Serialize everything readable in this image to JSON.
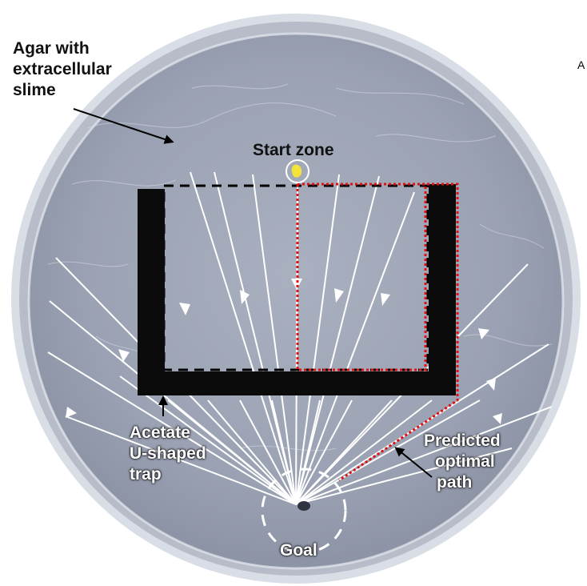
{
  "labels": {
    "agar": [
      "Agar with",
      "extracellular",
      "slime"
    ],
    "start_zone": "Start zone",
    "trap": [
      "Acetate",
      "U-shaped",
      "trap"
    ],
    "path": [
      "Predicted",
      "optimal",
      "path"
    ],
    "goal": "Goal"
  },
  "colors": {
    "dish_fill": "#9fa6b6",
    "dish_rim": "#dfe3ea",
    "trap": "#0b0b0b",
    "arrows": "#ffffff",
    "dashed_box": "#000000",
    "optimal_path": "#e01010",
    "slime_blob": "#f2e43a"
  }
}
